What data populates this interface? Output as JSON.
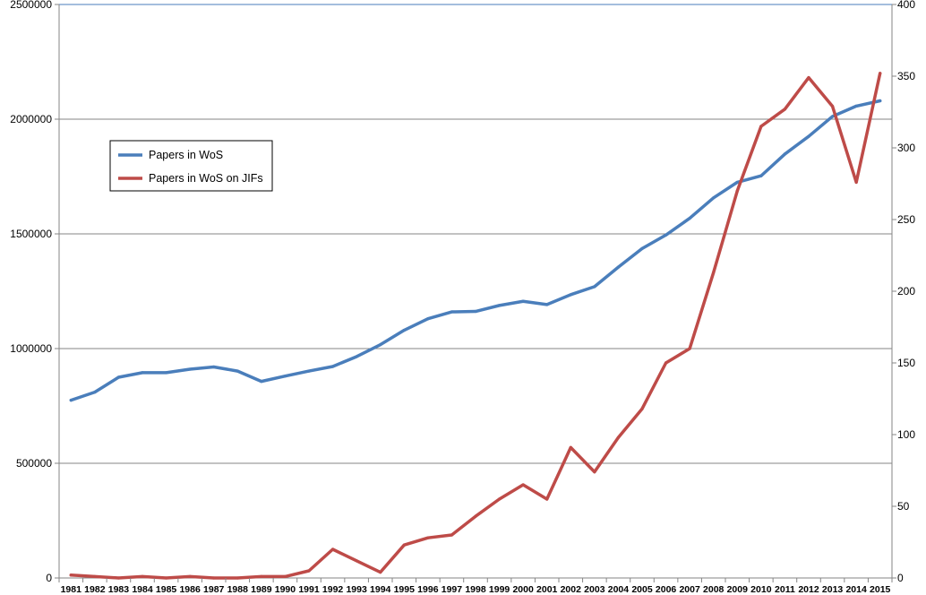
{
  "chart_data": {
    "type": "line",
    "title": "",
    "xlabel": "",
    "ylabel": "",
    "y2label": "",
    "x": [
      "1981",
      "1982",
      "1983",
      "1984",
      "1985",
      "1986",
      "1987",
      "1988",
      "1989",
      "1990",
      "1991",
      "1992",
      "1993",
      "1994",
      "1995",
      "1996",
      "1997",
      "1998",
      "1999",
      "2000",
      "2001",
      "2002",
      "2003",
      "2004",
      "2005",
      "2006",
      "2007",
      "2008",
      "2009",
      "2010",
      "2011",
      "2012",
      "2013",
      "2014",
      "2015"
    ],
    "ylim": [
      0,
      2500000
    ],
    "y_ticks": [
      0,
      500000,
      1000000,
      1500000,
      2000000,
      2500000
    ],
    "y_tick_labels": [
      "0",
      "500000",
      "1000000",
      "1500000",
      "2000000",
      "2500000"
    ],
    "y2lim": [
      0,
      400
    ],
    "y2_ticks": [
      0,
      50,
      100,
      150,
      200,
      250,
      300,
      350,
      400
    ],
    "y2_tick_labels": [
      "0",
      "50",
      "100",
      "150",
      "200",
      "250",
      "300",
      "350",
      "400"
    ],
    "grid": true,
    "legend_position": "upper-left",
    "series": [
      {
        "name": "Papers in WoS",
        "axis": "left",
        "color": "#4a7ebb",
        "values": [
          775000,
          810000,
          875000,
          895000,
          895000,
          910000,
          920000,
          902000,
          857000,
          880000,
          902000,
          922000,
          965000,
          1017000,
          1080000,
          1130000,
          1160000,
          1162000,
          1188000,
          1206000,
          1192000,
          1235000,
          1270000,
          1355000,
          1436000,
          1495000,
          1568000,
          1657000,
          1725000,
          1753000,
          1848000,
          1925000,
          2012000,
          2057000,
          2080000
        ]
      },
      {
        "name": "Papers in WoS on JIFs",
        "axis": "right",
        "color": "#be4b48",
        "values": [
          2,
          1,
          0,
          1,
          0,
          1,
          0,
          0,
          1,
          1,
          5,
          20,
          12,
          4,
          23,
          28,
          30,
          43,
          55,
          65,
          55,
          91,
          74,
          98,
          118,
          150,
          160,
          213,
          270,
          315,
          327,
          349,
          329,
          276,
          352
        ]
      }
    ]
  }
}
